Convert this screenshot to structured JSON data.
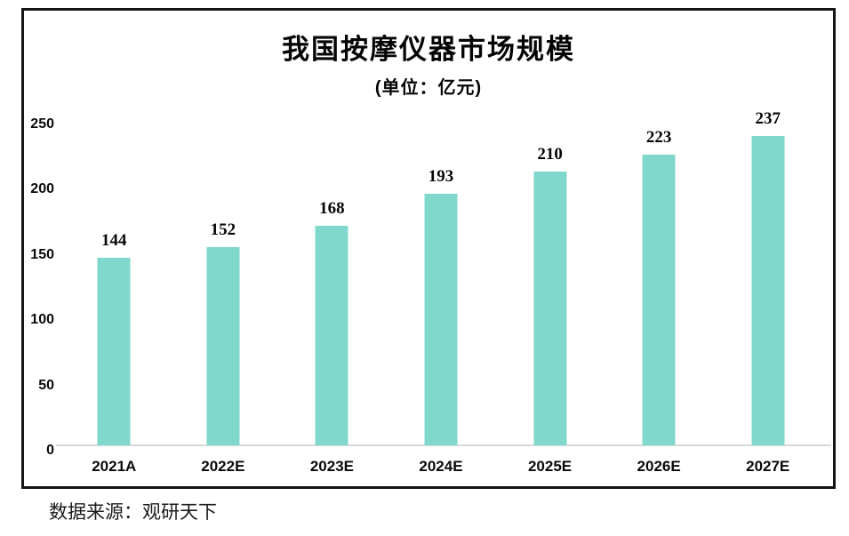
{
  "page": {
    "source_note": "数据来源：观研天下"
  },
  "chart_data": {
    "type": "bar",
    "title": "我国按摩仪器市场规模",
    "subtitle": "(单位：亿元)",
    "unit": "亿元",
    "categories": [
      "2021A",
      "2022E",
      "2023E",
      "2024E",
      "2025E",
      "2026E",
      "2027E"
    ],
    "values": [
      144,
      152,
      168,
      193,
      210,
      223,
      237
    ],
    "ylim": [
      0,
      250
    ],
    "yticks": [
      0,
      50,
      100,
      150,
      200,
      250
    ],
    "grid": false,
    "legend_position": "none",
    "bar_color": "#7FD8CB",
    "axis_line_color": "#D8D8D8",
    "label_color": "#060606"
  }
}
